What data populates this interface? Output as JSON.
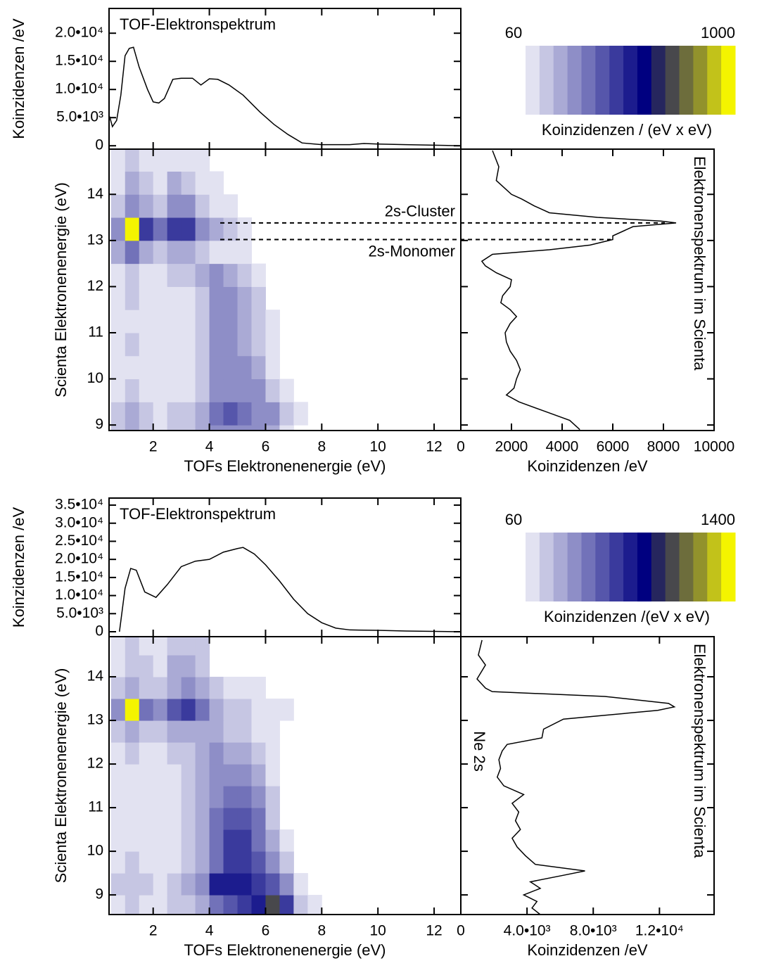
{
  "chart_data": [
    {
      "type": "line",
      "orientation": "horizontal",
      "title": "TOF-Elektronspektrum",
      "ylabel": "Koinzidenzen /eV",
      "color": "#000000",
      "x": [
        0.45,
        0.55,
        0.7,
        0.85,
        1.0,
        1.15,
        1.3,
        1.5,
        1.8,
        2.0,
        2.2,
        2.4,
        2.7,
        3.0,
        3.4,
        3.7,
        4.0,
        4.3,
        4.7,
        5.2,
        5.8,
        6.3,
        6.8,
        7.3,
        8.0,
        9.0,
        9.5,
        10.0,
        11.0,
        12.0,
        12.95
      ],
      "values": [
        5200,
        3400,
        4500,
        9000,
        16000,
        17300,
        17500,
        14000,
        10000,
        7800,
        7600,
        8400,
        11800,
        12000,
        12000,
        10800,
        11900,
        11800,
        10800,
        9000,
        6000,
        3800,
        2000,
        500,
        200,
        200,
        400,
        300,
        200,
        100,
        0
      ],
      "xlim": [
        0.43,
        12.95
      ],
      "ylim": [
        -600,
        24400
      ],
      "yticks": [
        0,
        {
          "value": 5000,
          "label": "5.0•10³"
        },
        {
          "value": 10000,
          "label": "1.0•10⁴"
        },
        {
          "value": 15000,
          "label": "1.5•10⁴"
        },
        {
          "value": 20000,
          "label": "2.0•10⁴"
        }
      ]
    },
    {
      "type": "heatmap",
      "xlabel": "TOFs Elektronenenergie (eV)",
      "ylabel": "Scienta Elektronenenergie (eV)",
      "xlim": [
        0.43,
        12.95
      ],
      "ylim": [
        8.88,
        14.98
      ],
      "xticks": [
        2,
        4,
        6,
        8,
        10,
        12
      ],
      "yticks": [
        9,
        10,
        11,
        12,
        13,
        14
      ],
      "x_edges": [
        0.5,
        1.0,
        1.5,
        2.0,
        2.5,
        3.0,
        3.5,
        4.0,
        4.5,
        5.0,
        5.5,
        6.0,
        6.5,
        7.0,
        7.5,
        8.0
      ],
      "y_edges": [
        8.5,
        9.0,
        9.5,
        10.0,
        10.5,
        11.0,
        11.5,
        12.0,
        12.5,
        13.0,
        13.5,
        14.0,
        14.5,
        15.0
      ],
      "z": [
        [
          150,
          200,
          150,
          120,
          150,
          180,
          200,
          300,
          300,
          300,
          250,
          200,
          100,
          0,
          0
        ],
        [
          150,
          200,
          150,
          120,
          150,
          180,
          200,
          350,
          380,
          350,
          300,
          250,
          150,
          60,
          0
        ],
        [
          120,
          150,
          100,
          80,
          100,
          120,
          180,
          300,
          300,
          280,
          250,
          150,
          60,
          0,
          0
        ],
        [
          100,
          120,
          80,
          60,
          80,
          100,
          150,
          300,
          300,
          250,
          200,
          100,
          0,
          0,
          0
        ],
        [
          80,
          150,
          60,
          60,
          100,
          80,
          150,
          250,
          280,
          200,
          180,
          80,
          0,
          0,
          0
        ],
        [
          100,
          120,
          60,
          80,
          100,
          100,
          150,
          250,
          250,
          200,
          150,
          60,
          0,
          0,
          0
        ],
        [
          80,
          150,
          80,
          100,
          120,
          100,
          180,
          250,
          250,
          200,
          150,
          0,
          0,
          0,
          0
        ],
        [
          100,
          150,
          100,
          120,
          150,
          150,
          200,
          250,
          200,
          150,
          80,
          0,
          0,
          0,
          0
        ],
        [
          200,
          350,
          200,
          150,
          200,
          200,
          150,
          120,
          100,
          60,
          0,
          0,
          0,
          0,
          0
        ],
        [
          250,
          1000,
          450,
          350,
          450,
          450,
          300,
          200,
          150,
          80,
          0,
          0,
          0,
          0,
          0
        ],
        [
          150,
          300,
          200,
          150,
          250,
          250,
          150,
          100,
          60,
          0,
          0,
          0,
          0,
          0,
          0
        ],
        [
          120,
          200,
          150,
          120,
          200,
          180,
          100,
          80,
          0,
          0,
          0,
          0,
          0,
          0,
          0
        ],
        [
          80,
          150,
          120,
          100,
          120,
          80,
          60,
          0,
          0,
          0,
          0,
          0,
          0,
          0,
          0
        ]
      ],
      "hlines": [
        {
          "value": 13.38,
          "label": "2s-Cluster"
        },
        {
          "value": 13.02,
          "label": "2s-Monomer"
        }
      ],
      "colorbar": {
        "min": 60,
        "max": 1000,
        "label": "Koinzidenzen / (eV x eV)",
        "colors": [
          "#e2e2f1",
          "#c6c6e3",
          "#aaaad5",
          "#8e8ec7",
          "#7272b9",
          "#5656ab",
          "#3a3a9d",
          "#1c1c8e",
          "#000080",
          "#26265e",
          "#48484c",
          "#6d6d3c",
          "#92922c",
          "#c2c21a",
          "#f4f400"
        ]
      }
    },
    {
      "type": "line",
      "orientation": "vertical",
      "title": "Elektronenspektrum im Scienta",
      "xlabel": "Koinzidenzen /eV",
      "color": "#000000",
      "energy": [
        14.95,
        14.6,
        14.3,
        14.1,
        14.0,
        13.9,
        13.75,
        13.6,
        13.5,
        13.42,
        13.38,
        13.3,
        13.1,
        13.02,
        12.9,
        12.8,
        12.7,
        12.55,
        12.45,
        12.3,
        12.15,
        12.0,
        11.8,
        11.65,
        11.5,
        11.35,
        11.2,
        11.0,
        10.8,
        10.6,
        10.4,
        10.2,
        10.0,
        9.8,
        9.65,
        9.5,
        9.3,
        9.1,
        8.9
      ],
      "values": [
        1250,
        1500,
        1400,
        1800,
        2000,
        2400,
        2900,
        3500,
        5400,
        7900,
        8500,
        6800,
        6000,
        6000,
        5100,
        3500,
        1250,
        830,
        970,
        1400,
        2000,
        1950,
        1650,
        1580,
        1950,
        2200,
        1950,
        1750,
        1800,
        1950,
        2200,
        2350,
        2200,
        2100,
        1800,
        2300,
        3300,
        4300,
        4700
      ],
      "xlim": [
        0,
        10000
      ],
      "ylim": [
        8.88,
        14.98
      ],
      "xticks": [
        0,
        2000,
        4000,
        6000,
        8000,
        10000
      ]
    },
    {
      "type": "line",
      "orientation": "horizontal",
      "title": "TOF-Elektronspektrum",
      "ylabel": "Koinzidenzen /eV",
      "color": "#000000",
      "x": [
        0.8,
        1.0,
        1.2,
        1.4,
        1.7,
        2.1,
        2.5,
        3.0,
        3.5,
        4.0,
        4.5,
        5.0,
        5.2,
        5.6,
        6.0,
        6.5,
        7.0,
        7.5,
        8.0,
        8.5,
        9.0,
        10.0,
        11.0,
        12.0,
        12.9
      ],
      "values": [
        0,
        12000,
        17500,
        17000,
        11000,
        9500,
        13000,
        18000,
        19500,
        20000,
        22000,
        23000,
        23300,
        21500,
        18500,
        14000,
        9000,
        5000,
        2500,
        1000,
        500,
        400,
        200,
        100,
        0
      ],
      "xlim": [
        0.43,
        12.95
      ],
      "ylim": [
        -1360,
        36950
      ],
      "yticks": [
        0,
        {
          "value": 5000,
          "label": "5.0•10³"
        },
        {
          "value": 10000,
          "label": "1.0•10⁴"
        },
        {
          "value": 15000,
          "label": "1.5•10⁴"
        },
        {
          "value": 20000,
          "label": "2.0•10⁴"
        },
        {
          "value": 25000,
          "label": "2.5•10⁴"
        },
        {
          "value": 30000,
          "label": "3.0•10⁴"
        },
        {
          "value": 35000,
          "label": "3.5•10⁴"
        }
      ]
    },
    {
      "type": "heatmap",
      "xlabel": "TOFs Elektronenenergie (eV)",
      "ylabel": "Scienta Elektronenenergie (eV)",
      "xlim": [
        0.43,
        12.95
      ],
      "ylim": [
        8.55,
        14.92
      ],
      "xticks": [
        2,
        4,
        6,
        8,
        10,
        12
      ],
      "yticks": [
        9,
        10,
        11,
        12,
        13,
        14
      ],
      "x_edges": [
        0.5,
        1.0,
        1.5,
        2.0,
        2.5,
        3.0,
        3.5,
        4.0,
        4.5,
        5.0,
        5.5,
        6.0,
        6.5,
        7.0,
        7.5,
        8.0
      ],
      "y_edges": [
        8.5,
        9.0,
        9.5,
        10.0,
        10.5,
        11.0,
        11.5,
        12.0,
        12.5,
        13.0,
        13.5,
        14.0,
        14.5,
        15.0
      ],
      "z": [
        [
          120,
          150,
          120,
          100,
          150,
          200,
          300,
          500,
          550,
          600,
          700,
          1000,
          600,
          200,
          80
        ],
        [
          150,
          200,
          150,
          120,
          200,
          250,
          350,
          700,
          750,
          700,
          650,
          550,
          350,
          100,
          0
        ],
        [
          120,
          150,
          100,
          80,
          120,
          180,
          300,
          500,
          650,
          650,
          550,
          350,
          150,
          0,
          0
        ],
        [
          100,
          120,
          80,
          80,
          100,
          150,
          250,
          450,
          600,
          600,
          500,
          250,
          80,
          0,
          0
        ],
        [
          80,
          120,
          60,
          60,
          100,
          150,
          250,
          450,
          550,
          550,
          450,
          200,
          0,
          0,
          0
        ],
        [
          100,
          120,
          80,
          80,
          120,
          150,
          250,
          400,
          500,
          500,
          350,
          150,
          0,
          0,
          0
        ],
        [
          80,
          120,
          80,
          80,
          120,
          150,
          250,
          350,
          400,
          350,
          250,
          100,
          0,
          0,
          0
        ],
        [
          100,
          150,
          100,
          100,
          150,
          200,
          250,
          350,
          300,
          250,
          150,
          80,
          0,
          0,
          0
        ],
        [
          200,
          300,
          200,
          150,
          250,
          300,
          300,
          250,
          200,
          150,
          100,
          60,
          0,
          0,
          0
        ],
        [
          350,
          1400,
          500,
          350,
          550,
          600,
          450,
          250,
          200,
          150,
          120,
          80,
          60,
          0,
          0
        ],
        [
          150,
          300,
          200,
          200,
          300,
          350,
          250,
          150,
          100,
          80,
          80,
          0,
          0,
          0,
          0
        ],
        [
          120,
          200,
          150,
          120,
          250,
          300,
          200,
          0,
          0,
          0,
          0,
          0,
          0,
          0,
          0
        ],
        [
          100,
          150,
          120,
          100,
          200,
          200,
          150,
          0,
          0,
          0,
          0,
          0,
          0,
          0,
          0
        ]
      ],
      "colorbar": {
        "min": 60,
        "max": 1400,
        "label": "Koinzidenzen /(eV x eV)",
        "colors": [
          "#e2e2f1",
          "#c6c6e3",
          "#aaaad5",
          "#8e8ec7",
          "#7272b9",
          "#5656ab",
          "#3a3a9d",
          "#1c1c8e",
          "#000080",
          "#26265e",
          "#48484c",
          "#6d6d3c",
          "#92922c",
          "#c2c21a",
          "#f4f400"
        ]
      }
    },
    {
      "type": "line",
      "orientation": "vertical",
      "title": "Elektronenspektrum im Scienta",
      "xlabel": "Koinzidenzen /eV",
      "annotation": "Ne 2s",
      "color": "#000000",
      "energy": [
        14.84,
        14.5,
        14.27,
        13.95,
        13.74,
        13.66,
        13.55,
        13.39,
        13.31,
        13.23,
        13.03,
        12.8,
        12.6,
        12.45,
        12.3,
        12.1,
        11.9,
        11.7,
        11.5,
        11.3,
        11.1,
        10.9,
        10.7,
        10.5,
        10.3,
        10.1,
        9.9,
        9.7,
        9.55,
        9.45,
        9.3,
        9.15,
        9.0,
        8.85,
        8.7,
        8.55
      ],
      "values": [
        1280,
        1060,
        1490,
        980,
        1490,
        1900,
        8700,
        12550,
        12900,
        11900,
        6200,
        5000,
        4900,
        2800,
        2500,
        2300,
        2400,
        2200,
        2600,
        3800,
        3100,
        3500,
        3300,
        3600,
        3100,
        3400,
        3900,
        4500,
        7500,
        6200,
        4200,
        4800,
        3800,
        4600,
        4300,
        4800
      ],
      "xlim": [
        0,
        15300
      ],
      "ylim": [
        8.55,
        14.92
      ],
      "xticks": [
        0,
        {
          "value": 4000,
          "label": "4.0•10³"
        },
        {
          "value": 8000,
          "label": "8.0•10³"
        },
        {
          "value": 12000,
          "label": "1.2•10⁴"
        }
      ]
    }
  ]
}
